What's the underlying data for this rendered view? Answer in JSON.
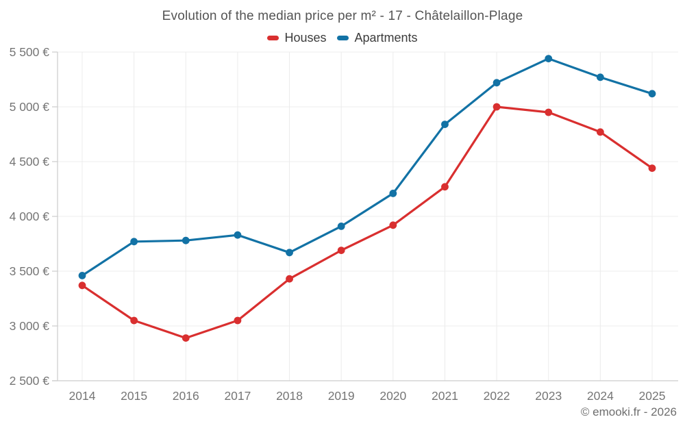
{
  "page": {
    "background": "#ffffff",
    "footer_credit": "© emooki.fr - 2026"
  },
  "chart_data": {
    "type": "line",
    "title": "Evolution of the median price per m² - 17 - Châtelaillon-Plage",
    "categories": [
      "2014",
      "2015",
      "2016",
      "2017",
      "2018",
      "2019",
      "2020",
      "2021",
      "2022",
      "2023",
      "2024",
      "2025"
    ],
    "series": [
      {
        "name": "Houses",
        "color": "#d92f2f",
        "values": [
          3370,
          3050,
          2890,
          3050,
          3430,
          3690,
          3920,
          4270,
          5000,
          4950,
          4770,
          4440
        ]
      },
      {
        "name": "Apartments",
        "color": "#1272a5",
        "values": [
          3460,
          3770,
          3780,
          3830,
          3670,
          3910,
          4210,
          4840,
          5220,
          5440,
          5270,
          5120
        ]
      }
    ],
    "ylim": [
      2500,
      5500
    ],
    "ytick_step": 500,
    "value_suffix": " €",
    "grid": true,
    "legend_position": "top",
    "marker": "circle",
    "colors": {
      "grid_line": "#ececec",
      "axis_line": "#cccccc",
      "tick_label": "#757575",
      "title_text": "#545454",
      "legend_text": "#3c3c3c",
      "footer_text": "#6e6e6e"
    }
  }
}
